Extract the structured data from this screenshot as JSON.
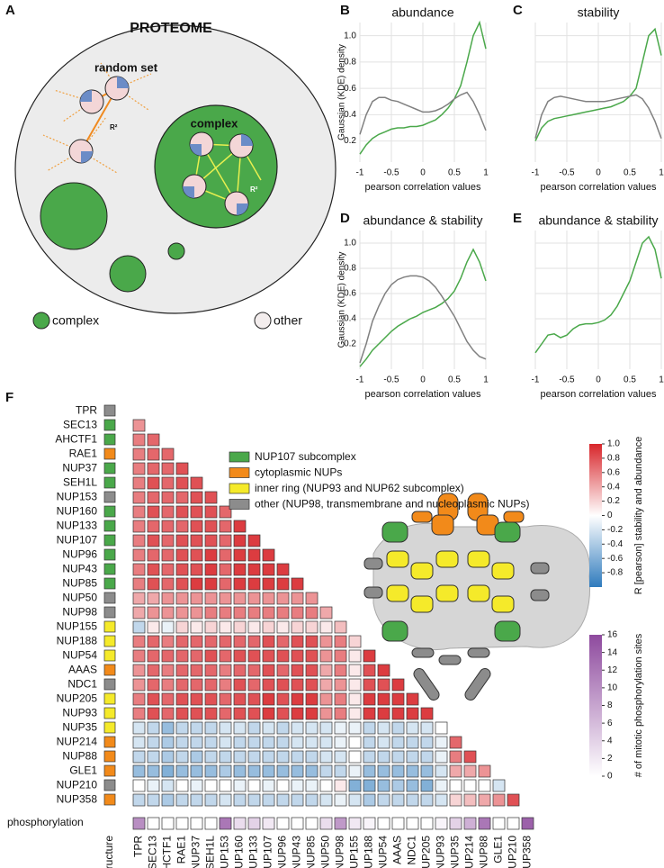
{
  "panel_a": {
    "label": "A",
    "title": "PROTEOME",
    "random_set": "random set",
    "complex": "complex",
    "r2": "R²",
    "legend": [
      "complex",
      "other"
    ]
  },
  "chart_data": [
    {
      "type": "line",
      "panel": "B",
      "title": "abundance",
      "ylabel": "Gaussian (KDE) density",
      "xlabel": "pearson correlation values",
      "x": [
        -1,
        -0.9,
        -0.8,
        -0.7,
        -0.6,
        -0.5,
        -0.4,
        -0.3,
        -0.2,
        -0.1,
        0,
        0.1,
        0.2,
        0.3,
        0.4,
        0.5,
        0.6,
        0.7,
        0.8,
        0.9,
        1
      ],
      "xlim": [
        -1,
        1
      ],
      "xticks": [
        -1,
        -0.5,
        0,
        0.5,
        1
      ],
      "ylim": [
        0.04,
        1.1
      ],
      "yticks": [
        0.2,
        0.4,
        0.6,
        0.8,
        {
          "value": 1,
          "label": "1.0"
        }
      ],
      "show_ytick_labels": true,
      "grid": true,
      "series": [
        {
          "color": "#4aa84a",
          "values": [
            0.1,
            0.17,
            0.22,
            0.25,
            0.27,
            0.29,
            0.3,
            0.3,
            0.31,
            0.31,
            0.32,
            0.34,
            0.36,
            0.4,
            0.45,
            0.52,
            0.62,
            0.8,
            1.0,
            1.1,
            0.9
          ]
        },
        {
          "color": "#808080",
          "values": [
            0.25,
            0.4,
            0.5,
            0.53,
            0.53,
            0.51,
            0.5,
            0.48,
            0.46,
            0.44,
            0.42,
            0.42,
            0.43,
            0.45,
            0.48,
            0.52,
            0.55,
            0.57,
            0.5,
            0.4,
            0.28
          ]
        }
      ]
    },
    {
      "type": "line",
      "panel": "C",
      "title": "stability",
      "xlabel": "pearson correlation values",
      "x": [
        -1,
        -0.9,
        -0.8,
        -0.7,
        -0.6,
        -0.5,
        -0.4,
        -0.3,
        -0.2,
        -0.1,
        0,
        0.1,
        0.2,
        0.3,
        0.4,
        0.5,
        0.6,
        0.7,
        0.8,
        0.9,
        1
      ],
      "xlim": [
        -1,
        1
      ],
      "xticks": [
        -1,
        -0.5,
        0,
        0.5,
        1
      ],
      "ylim": [
        0.04,
        1.1
      ],
      "yticks": [
        0.2,
        0.4,
        0.6,
        0.8,
        1
      ],
      "show_ytick_labels": false,
      "grid": true,
      "series": [
        {
          "color": "#4aa84a",
          "values": [
            0.2,
            0.3,
            0.35,
            0.37,
            0.38,
            0.39,
            0.4,
            0.41,
            0.42,
            0.43,
            0.44,
            0.45,
            0.46,
            0.48,
            0.5,
            0.54,
            0.6,
            0.8,
            1.0,
            1.05,
            0.85
          ]
        },
        {
          "color": "#808080",
          "values": [
            0.22,
            0.4,
            0.5,
            0.53,
            0.54,
            0.53,
            0.52,
            0.51,
            0.5,
            0.5,
            0.5,
            0.5,
            0.51,
            0.52,
            0.53,
            0.54,
            0.55,
            0.52,
            0.45,
            0.35,
            0.22
          ]
        }
      ]
    },
    {
      "type": "line",
      "panel": "D",
      "title": "abundance & stability",
      "ylabel": "Gaussian (KDE) density",
      "xlabel": "pearson correlation values",
      "x": [
        -1,
        -0.9,
        -0.8,
        -0.7,
        -0.6,
        -0.5,
        -0.4,
        -0.3,
        -0.2,
        -0.1,
        0,
        0.1,
        0.2,
        0.3,
        0.4,
        0.5,
        0.6,
        0.7,
        0.8,
        0.9,
        1
      ],
      "xlim": [
        -1,
        1
      ],
      "xticks": [
        -1,
        -0.5,
        0,
        0.5,
        1
      ],
      "ylim": [
        0,
        1.1
      ],
      "yticks": [
        0.2,
        0.4,
        0.6,
        0.8,
        {
          "value": 1,
          "label": "1.0"
        }
      ],
      "show_ytick_labels": true,
      "grid": true,
      "series": [
        {
          "color": "#4aa84a",
          "values": [
            0.02,
            0.08,
            0.15,
            0.2,
            0.25,
            0.3,
            0.34,
            0.37,
            0.4,
            0.42,
            0.45,
            0.47,
            0.49,
            0.52,
            0.56,
            0.62,
            0.72,
            0.85,
            0.95,
            0.85,
            0.7
          ]
        },
        {
          "color": "#808080",
          "values": [
            0.05,
            0.2,
            0.38,
            0.5,
            0.6,
            0.67,
            0.71,
            0.73,
            0.74,
            0.74,
            0.73,
            0.7,
            0.65,
            0.58,
            0.5,
            0.42,
            0.32,
            0.22,
            0.15,
            0.1,
            0.08
          ]
        }
      ]
    },
    {
      "type": "line",
      "panel": "E",
      "title": "abundance & stability",
      "xlabel": "pearson correlation values",
      "x": [
        -1,
        -0.9,
        -0.8,
        -0.7,
        -0.6,
        -0.5,
        -0.4,
        -0.3,
        -0.2,
        -0.1,
        0,
        0.1,
        0.2,
        0.3,
        0.4,
        0.5,
        0.6,
        0.7,
        0.8,
        0.9,
        1
      ],
      "xlim": [
        -1,
        1
      ],
      "xticks": [
        -1,
        -0.5,
        0,
        0.5,
        1
      ],
      "ylim": [
        0,
        1.1
      ],
      "yticks": [
        0.2,
        0.4,
        0.6,
        0.8,
        1
      ],
      "show_ytick_labels": false,
      "grid": true,
      "series": [
        {
          "color": "#4aa84a",
          "values": [
            0.13,
            0.2,
            0.27,
            0.28,
            0.25,
            0.27,
            0.32,
            0.35,
            0.36,
            0.36,
            0.37,
            0.39,
            0.43,
            0.5,
            0.6,
            0.7,
            0.85,
            1.0,
            1.05,
            0.95,
            0.72
          ]
        }
      ]
    },
    {
      "type": "heatmap",
      "panel": "F",
      "labels": [
        "TPR",
        "SEC13",
        "AHCTF1",
        "RAE1",
        "NUP37",
        "SEH1L",
        "NUP153",
        "NUP160",
        "NUP133",
        "NUP107",
        "NUP96",
        "NUP43",
        "NUP85",
        "NUP50",
        "NUP98",
        "NUP155",
        "NUP188",
        "NUP54",
        "AAAS",
        "NDC1",
        "NUP205",
        "NUP93",
        "NUP35",
        "NUP214",
        "NUP88",
        "GLE1",
        "NUP210",
        "NUP358"
      ],
      "structure_label": "structure",
      "structure_colors": [
        "#8c8c8c",
        "#4aa84a",
        "#4aa84a",
        "#f28a1a",
        "#4aa84a",
        "#4aa84a",
        "#8c8c8c",
        "#4aa84a",
        "#4aa84a",
        "#4aa84a",
        "#4aa84a",
        "#4aa84a",
        "#4aa84a",
        "#8c8c8c",
        "#8c8c8c",
        "#f5ea2a",
        "#f5ea2a",
        "#f5ea2a",
        "#f28a1a",
        "#8c8c8c",
        "#f5ea2a",
        "#f5ea2a",
        "#f5ea2a",
        "#f28a1a",
        "#f28a1a",
        "#f28a1a",
        "#8c8c8c",
        "#f28a1a"
      ],
      "groups": [
        {
          "label": "NUP107 subcomplex",
          "color": "#4aa84a"
        },
        {
          "label": "cytoplasmic NUPs",
          "color": "#f28a1a"
        },
        {
          "label": "inner ring (NUP93 and NUP62 subcomplex)",
          "color": "#f5ea2a"
        },
        {
          "label": "other (NUP98, transmembrane and nucleoplasmic NUPs)",
          "color": "#8c8c8c"
        }
      ],
      "values": [
        [],
        [
          0.5
        ],
        [
          0.6,
          0.7
        ],
        [
          0.6,
          0.7,
          0.7
        ],
        [
          0.6,
          0.7,
          0.7,
          0.8
        ],
        [
          0.6,
          0.8,
          0.7,
          0.8,
          0.8
        ],
        [
          0.6,
          0.7,
          0.7,
          0.7,
          0.8,
          0.8
        ],
        [
          0.6,
          0.8,
          0.7,
          0.8,
          0.8,
          0.8,
          0.7
        ],
        [
          0.6,
          0.7,
          0.7,
          0.7,
          0.8,
          0.8,
          0.7,
          0.9
        ],
        [
          0.6,
          0.8,
          0.7,
          0.8,
          0.8,
          0.8,
          0.7,
          0.9,
          0.9
        ],
        [
          0.6,
          0.7,
          0.7,
          0.8,
          0.8,
          0.9,
          0.7,
          0.9,
          0.9,
          0.9
        ],
        [
          0.6,
          0.8,
          0.7,
          0.8,
          0.8,
          0.9,
          0.7,
          0.9,
          0.9,
          0.9,
          0.9
        ],
        [
          0.6,
          0.8,
          0.7,
          0.8,
          0.9,
          0.9,
          0.7,
          0.9,
          0.9,
          0.9,
          0.9,
          0.9
        ],
        [
          0.4,
          0.4,
          0.5,
          0.5,
          0.5,
          0.5,
          0.5,
          0.5,
          0.5,
          0.5,
          0.5,
          0.5,
          0.5
        ],
        [
          0.4,
          0.5,
          0.5,
          0.5,
          0.5,
          0.6,
          0.6,
          0.6,
          0.6,
          0.6,
          0.6,
          0.6,
          0.6,
          0.4
        ],
        [
          -0.3,
          0.1,
          -0.1,
          0.2,
          0.1,
          0.2,
          0.1,
          0.2,
          0.1,
          0.2,
          0.1,
          0.2,
          0.2,
          0.1,
          0.3
        ],
        [
          0.6,
          0.7,
          0.6,
          0.7,
          0.7,
          0.7,
          0.7,
          0.7,
          0.7,
          0.8,
          0.7,
          0.8,
          0.8,
          0.5,
          0.6,
          0.2
        ],
        [
          0.6,
          0.7,
          0.7,
          0.7,
          0.7,
          0.8,
          0.7,
          0.8,
          0.8,
          0.8,
          0.8,
          0.8,
          0.8,
          0.5,
          0.6,
          0.1,
          0.9
        ],
        [
          0.5,
          0.7,
          0.6,
          0.7,
          0.7,
          0.7,
          0.6,
          0.7,
          0.7,
          0.8,
          0.7,
          0.8,
          0.8,
          0.4,
          0.6,
          0.1,
          0.8,
          0.9
        ],
        [
          0.5,
          0.7,
          0.6,
          0.7,
          0.7,
          0.7,
          0.6,
          0.8,
          0.7,
          0.8,
          0.8,
          0.8,
          0.8,
          0.4,
          0.5,
          0.1,
          0.8,
          0.8,
          0.9
        ],
        [
          0.6,
          0.8,
          0.7,
          0.8,
          0.8,
          0.8,
          0.7,
          0.8,
          0.8,
          0.9,
          0.8,
          0.9,
          0.9,
          0.5,
          0.6,
          0.1,
          0.9,
          0.9,
          0.9,
          0.9
        ],
        [
          0.6,
          0.8,
          0.7,
          0.8,
          0.8,
          0.8,
          0.7,
          0.8,
          0.8,
          0.9,
          0.8,
          0.9,
          0.9,
          0.5,
          0.6,
          0.1,
          0.9,
          0.9,
          0.9,
          0.9,
          0.9
        ],
        [
          -0.2,
          -0.3,
          -0.5,
          -0.3,
          -0.3,
          -0.3,
          -0.2,
          -0.2,
          -0.3,
          -0.2,
          -0.3,
          -0.2,
          -0.2,
          -0.2,
          -0.1,
          -0.1,
          -0.3,
          -0.2,
          -0.3,
          -0.2,
          -0.2,
          0.0
        ],
        [
          -0.2,
          -0.3,
          -0.4,
          -0.3,
          -0.3,
          -0.3,
          -0.2,
          -0.3,
          -0.3,
          -0.3,
          -0.3,
          -0.2,
          -0.2,
          -0.2,
          -0.1,
          0.0,
          -0.3,
          -0.2,
          -0.3,
          -0.3,
          -0.3,
          -0.1,
          0.7
        ],
        [
          -0.3,
          -0.3,
          -0.4,
          -0.3,
          -0.4,
          -0.3,
          -0.3,
          -0.3,
          -0.3,
          -0.3,
          -0.3,
          -0.3,
          -0.3,
          -0.2,
          -0.2,
          0.0,
          -0.3,
          -0.3,
          -0.3,
          -0.3,
          -0.3,
          -0.1,
          0.6,
          0.8
        ],
        [
          -0.5,
          -0.5,
          -0.6,
          -0.5,
          -0.5,
          -0.5,
          -0.4,
          -0.5,
          -0.5,
          -0.5,
          -0.5,
          -0.5,
          -0.5,
          -0.3,
          -0.3,
          -0.1,
          -0.5,
          -0.5,
          -0.5,
          -0.5,
          -0.5,
          -0.2,
          0.4,
          0.4,
          0.5
        ],
        [
          0.0,
          -0.1,
          -0.2,
          0.0,
          -0.1,
          0.0,
          0.0,
          -0.1,
          0.0,
          -0.1,
          0.0,
          -0.1,
          -0.1,
          0.0,
          0.1,
          -0.6,
          -0.6,
          -0.5,
          -0.4,
          -0.5,
          -0.6,
          -0.1,
          0.0,
          0.0,
          0.0,
          -0.2
        ],
        [
          -0.3,
          -0.3,
          -0.4,
          -0.3,
          -0.3,
          -0.3,
          -0.2,
          -0.3,
          -0.3,
          -0.3,
          -0.3,
          -0.3,
          -0.3,
          -0.2,
          -0.1,
          -0.2,
          -0.4,
          -0.3,
          -0.3,
          -0.3,
          -0.3,
          -0.2,
          0.2,
          0.3,
          0.4,
          0.5,
          0.8
        ]
      ],
      "color_scale": {
        "label": "R [pearson] stability and abundance",
        "lim": [
          -1,
          1
        ],
        "ticks": [
          -0.8,
          -0.6,
          -0.4,
          -0.2,
          0,
          0.2,
          0.4,
          0.6,
          0.8,
          {
            "value": 1,
            "label": "1.0"
          }
        ],
        "colors": [
          "#2f7bbd",
          "#ffffff",
          "#d8262b"
        ]
      },
      "phosphorylation": {
        "row_label": "phosphorylation",
        "label": "# of mitotic phosphorylation sites",
        "lim": [
          0,
          16
        ],
        "ticks": [
          0,
          2,
          4,
          6,
          8,
          10,
          12,
          14,
          16
        ],
        "colors": [
          "#ffffff",
          "#8e4a9e"
        ],
        "values": [
          10,
          0,
          0,
          0,
          0,
          0,
          12,
          3,
          4,
          2,
          0,
          0,
          0,
          3,
          9,
          2,
          1,
          0,
          0,
          0,
          0,
          1,
          4,
          7,
          12,
          0,
          0,
          14
        ]
      }
    }
  ]
}
